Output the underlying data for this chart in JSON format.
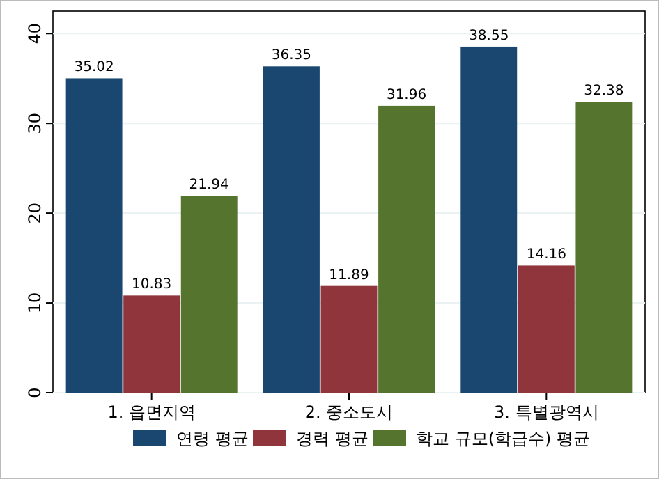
{
  "chart_data": {
    "type": "bar",
    "categories": [
      "1. 읍면지역",
      "2. 중소도시",
      "3. 특별광역시"
    ],
    "series": [
      {
        "name": "연령 평균",
        "color": "#1a476f",
        "values": [
          35.02,
          36.35,
          38.55
        ]
      },
      {
        "name": "경력 평균",
        "color": "#90353b",
        "values": [
          10.83,
          11.89,
          14.16
        ]
      },
      {
        "name": "학교 규모(학급수) 평균",
        "color": "#55752f",
        "values": [
          21.94,
          31.96,
          32.38
        ]
      }
    ],
    "ylim": [
      0,
      42.5
    ],
    "yticks": [
      0,
      10,
      20,
      30,
      40
    ],
    "grid": "y",
    "legend": "bottom",
    "data_labels": true
  }
}
